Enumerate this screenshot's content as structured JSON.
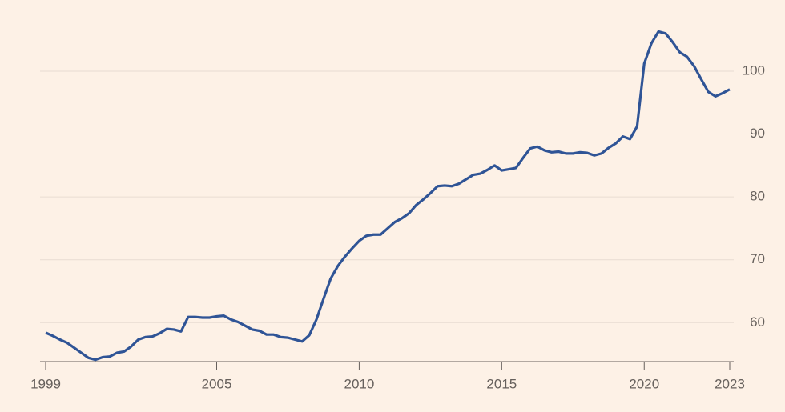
{
  "chart_data": {
    "type": "line",
    "x": [
      1999,
      1999.25,
      1999.5,
      1999.75,
      2000,
      2000.25,
      2000.5,
      2000.75,
      2001,
      2001.25,
      2001.5,
      2001.75,
      2002,
      2002.25,
      2002.5,
      2002.75,
      2003,
      2003.25,
      2003.5,
      2003.75,
      2004,
      2004.25,
      2004.5,
      2004.75,
      2005,
      2005.25,
      2005.5,
      2005.75,
      2006,
      2006.25,
      2006.5,
      2006.75,
      2007,
      2007.25,
      2007.5,
      2007.75,
      2008,
      2008.25,
      2008.5,
      2008.75,
      2009,
      2009.25,
      2009.5,
      2009.75,
      2010,
      2010.25,
      2010.5,
      2010.75,
      2011,
      2011.25,
      2011.5,
      2011.75,
      2012,
      2012.25,
      2012.5,
      2012.75,
      2013,
      2013.25,
      2013.5,
      2013.75,
      2014,
      2014.25,
      2014.5,
      2014.75,
      2015,
      2015.25,
      2015.5,
      2015.75,
      2016,
      2016.25,
      2016.5,
      2016.75,
      2017,
      2017.25,
      2017.5,
      2017.75,
      2018,
      2018.25,
      2018.5,
      2018.75,
      2019,
      2019.25,
      2019.5,
      2019.75,
      2020,
      2020.25,
      2020.5,
      2020.75,
      2021,
      2021.25,
      2021.5,
      2021.75,
      2022,
      2022.25,
      2022.5,
      2022.75,
      2023
    ],
    "series": [
      {
        "color": "#2f5496",
        "values": [
          58.4,
          57.9,
          57.3,
          56.8,
          56.0,
          55.2,
          54.4,
          54.1,
          54.5,
          54.6,
          55.2,
          55.4,
          56.2,
          57.3,
          57.7,
          57.8,
          58.3,
          59.0,
          58.9,
          58.6,
          60.9,
          60.9,
          60.8,
          60.8,
          61.0,
          61.1,
          60.5,
          60.1,
          59.5,
          58.9,
          58.7,
          58.1,
          58.1,
          57.7,
          57.6,
          57.3,
          57.0,
          58.0,
          60.5,
          63.8,
          67.0,
          69.0,
          70.5,
          71.8,
          73.0,
          73.8,
          74.0,
          74.0,
          75.0,
          76.0,
          76.6,
          77.4,
          78.7,
          79.6,
          80.6,
          81.7,
          81.8,
          81.7,
          82.1,
          82.8,
          83.5,
          83.7,
          84.3,
          85.0,
          84.2,
          84.4,
          84.6,
          86.2,
          87.7,
          88.0,
          87.4,
          87.1,
          87.2,
          86.9,
          86.9,
          87.1,
          87.0,
          86.6,
          86.9,
          87.8,
          88.5,
          89.6,
          89.2,
          91.2,
          101.2,
          104.4,
          106.3,
          106.0,
          104.6,
          103.0,
          102.3,
          100.8,
          98.7,
          96.7,
          96.0,
          96.5,
          97.1
        ]
      }
    ],
    "xlim": [
      1999,
      2023
    ],
    "xticks": [
      1999,
      2005,
      2010,
      2015,
      2020,
      2023
    ],
    "ylim": [
      53.8,
      107.5
    ],
    "yticks": [
      60,
      70,
      80,
      90,
      100
    ],
    "grid": true
  }
}
